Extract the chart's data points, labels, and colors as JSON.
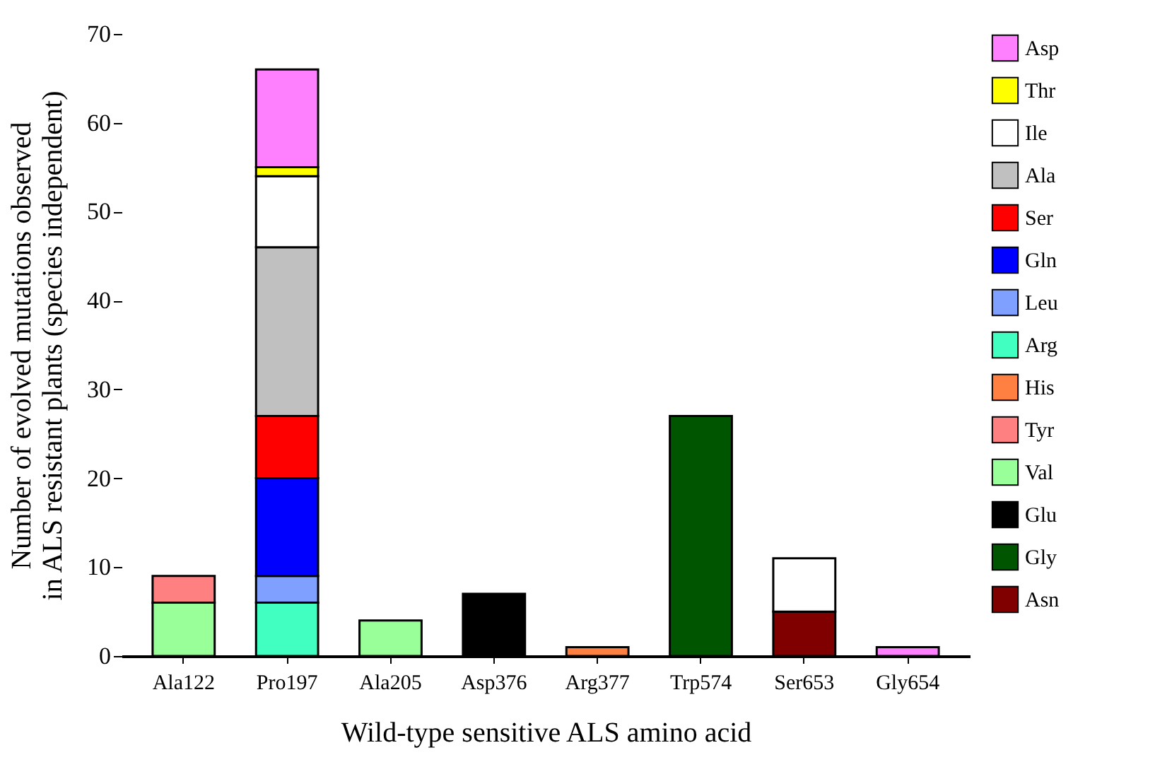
{
  "chart_data": {
    "type": "bar",
    "stacked": true,
    "xlabel": "Wild-type sensitive ALS amino acid",
    "ylabel": "Number of evolved mutations observed\nin ALS resistant plants (species independent)",
    "categories": [
      "Ala122",
      "Pro197",
      "Ala205",
      "Asp376",
      "Arg377",
      "Trp574",
      "Ser653",
      "Gly654"
    ],
    "ylim": [
      0,
      70
    ],
    "yticks": [
      0,
      10,
      20,
      30,
      40,
      50,
      60,
      70
    ],
    "grid": false,
    "legend": "right",
    "series": [
      {
        "name": "Asn",
        "color": "#800000",
        "values": [
          null,
          null,
          null,
          null,
          null,
          null,
          5,
          null
        ]
      },
      {
        "name": "Gly",
        "color": "#005500",
        "values": [
          null,
          null,
          null,
          null,
          null,
          27,
          null,
          null
        ]
      },
      {
        "name": "Glu",
        "color": "#000000",
        "values": [
          null,
          null,
          null,
          7,
          null,
          null,
          null,
          null
        ]
      },
      {
        "name": "Val",
        "color": "#99ff99",
        "values": [
          6,
          null,
          4,
          null,
          null,
          null,
          null,
          null
        ]
      },
      {
        "name": "Tyr",
        "color": "#ff8080",
        "values": [
          3,
          null,
          null,
          null,
          null,
          null,
          null,
          null
        ]
      },
      {
        "name": "His",
        "color": "#ff8040",
        "values": [
          null,
          null,
          null,
          null,
          1,
          null,
          null,
          null
        ]
      },
      {
        "name": "Arg",
        "color": "#40ffc0",
        "values": [
          null,
          6,
          null,
          null,
          null,
          null,
          null,
          null
        ]
      },
      {
        "name": "Leu",
        "color": "#80a0ff",
        "values": [
          null,
          3,
          null,
          null,
          null,
          null,
          null,
          null
        ]
      },
      {
        "name": "Gln",
        "color": "#0000ff",
        "values": [
          null,
          11,
          null,
          null,
          null,
          null,
          null,
          null
        ]
      },
      {
        "name": "Ser",
        "color": "#ff0000",
        "values": [
          null,
          7,
          null,
          null,
          null,
          null,
          null,
          null
        ]
      },
      {
        "name": "Ala",
        "color": "#c0c0c0",
        "values": [
          null,
          19,
          null,
          null,
          null,
          null,
          null,
          null
        ]
      },
      {
        "name": "Ile",
        "color": "#ffffff",
        "values": [
          null,
          8,
          null,
          null,
          null,
          null,
          6,
          null
        ]
      },
      {
        "name": "Thr",
        "color": "#ffff00",
        "values": [
          null,
          1,
          null,
          null,
          null,
          null,
          null,
          null
        ]
      },
      {
        "name": "Asp",
        "color": "#ff80ff",
        "values": [
          null,
          11,
          null,
          null,
          null,
          null,
          null,
          1
        ]
      }
    ]
  }
}
